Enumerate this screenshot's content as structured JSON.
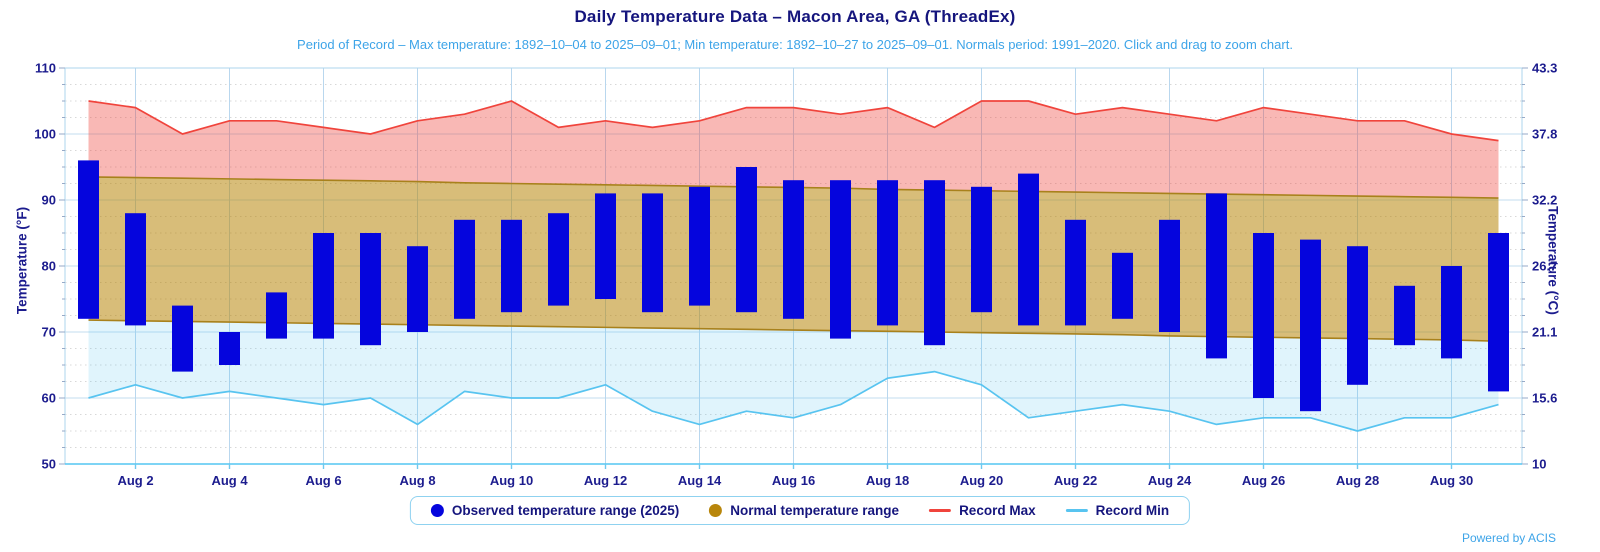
{
  "title": "Daily Temperature Data – Macon Area, GA (ThreadEx)",
  "subtitle": "Period of Record – Max temperature: 1892–10–04 to 2025–09–01; Min temperature: 1892–10–27 to 2025–09–01. Normals period: 1991–2020. Click and drag to zoom chart.",
  "footer": {
    "powered_by": "Powered by ACIS"
  },
  "legend": {
    "items": [
      {
        "label": "Observed temperature range (2025)",
        "marker": "circle",
        "color": "#0505dd"
      },
      {
        "label": "Normal temperature range",
        "marker": "circle",
        "color": "#b8860b"
      },
      {
        "label": "Record Max",
        "marker": "line",
        "color": "#f0443c"
      },
      {
        "label": "Record Min",
        "marker": "line",
        "color": "#58c4f0"
      }
    ]
  },
  "colors": {
    "observed_bar": "#0505dd",
    "normal_line": "#a8811c",
    "normal_fill": "rgba(184,134,11,0.55)",
    "record_max_line": "#f0443c",
    "record_max_fill": "rgba(240,68,60,0.38)",
    "record_min_line": "#58c4f0",
    "record_min_fill": "rgba(85,195,239,0.18)",
    "grid_major": "#c3ddef",
    "grid_vertical": "#b9d7ee",
    "grid_minor": "#d8d8d8",
    "axis_line": "#54c6f2",
    "plot_border": "#aed6ee",
    "tick_mark": "#96aac8",
    "x_tick_mark": "#6fc9ef",
    "text": "#1c1c8e"
  },
  "chart_data": {
    "type": "bar",
    "title": "Daily Temperature Data – Macon Area, GA (ThreadEx)",
    "xlabel": "",
    "ylabel_left": "Temperature (°F)",
    "ylabel_right": "Temperature (°C)",
    "ylim_f": [
      50,
      110
    ],
    "y_ticks_f": [
      50,
      60,
      70,
      80,
      90,
      100,
      110
    ],
    "y_ticks_c": [
      "10",
      "15.6",
      "21.1",
      "26.7",
      "32.2",
      "37.8",
      "43.3"
    ],
    "y_minor_step_f": 2.5,
    "x_label_every": 2,
    "grid": true,
    "legend_position": "bottom",
    "x": [
      "Aug 1",
      "Aug 2",
      "Aug 3",
      "Aug 4",
      "Aug 5",
      "Aug 6",
      "Aug 7",
      "Aug 8",
      "Aug 9",
      "Aug 10",
      "Aug 11",
      "Aug 12",
      "Aug 13",
      "Aug 14",
      "Aug 15",
      "Aug 16",
      "Aug 17",
      "Aug 18",
      "Aug 19",
      "Aug 20",
      "Aug 21",
      "Aug 22",
      "Aug 23",
      "Aug 24",
      "Aug 25",
      "Aug 26",
      "Aug 27",
      "Aug 28",
      "Aug 29",
      "Aug 30",
      "Aug 31"
    ],
    "series": [
      {
        "name": "Observed temperature range (2025)",
        "type": "range-bar",
        "low": [
          72,
          71,
          64,
          65,
          69,
          69,
          68,
          70,
          72,
          73,
          74,
          75,
          73,
          74,
          73,
          72,
          69,
          71,
          68,
          73,
          71,
          71,
          72,
          70,
          66,
          60,
          58,
          62,
          68,
          66,
          61
        ],
        "high": [
          96,
          88,
          74,
          70,
          76,
          85,
          85,
          83,
          87,
          87,
          88,
          91,
          91,
          92,
          95,
          93,
          93,
          93,
          93,
          92,
          94,
          87,
          82,
          87,
          91,
          85,
          84,
          83,
          77,
          80,
          85
        ]
      },
      {
        "name": "Normal temperature range",
        "type": "band",
        "low": [
          71.8,
          71.7,
          71.6,
          71.5,
          71.4,
          71.3,
          71.2,
          71.1,
          71.0,
          70.9,
          70.8,
          70.7,
          70.6,
          70.5,
          70.4,
          70.3,
          70.2,
          70.1,
          70.0,
          69.9,
          69.8,
          69.7,
          69.6,
          69.4,
          69.3,
          69.2,
          69.1,
          69.0,
          68.9,
          68.8,
          68.6
        ],
        "high": [
          93.5,
          93.4,
          93.3,
          93.2,
          93.1,
          93.0,
          92.9,
          92.8,
          92.6,
          92.5,
          92.4,
          92.3,
          92.2,
          92.1,
          92.0,
          91.9,
          91.8,
          91.6,
          91.5,
          91.4,
          91.3,
          91.2,
          91.1,
          91.0,
          90.9,
          90.8,
          90.7,
          90.6,
          90.5,
          90.4,
          90.3
        ]
      },
      {
        "name": "Record Max",
        "type": "line",
        "values": [
          105,
          104,
          100,
          102,
          102,
          101,
          100,
          102,
          103,
          105,
          101,
          102,
          101,
          102,
          104,
          104,
          103,
          104,
          101,
          105,
          105,
          103,
          104,
          103,
          102,
          104,
          103,
          102,
          102,
          100,
          99
        ]
      },
      {
        "name": "Record Min",
        "type": "line",
        "values": [
          60,
          62,
          60,
          61,
          60,
          59,
          60,
          56,
          61,
          60,
          60,
          62,
          58,
          56,
          58,
          57,
          59,
          63,
          64,
          62,
          57,
          58,
          59,
          58,
          56,
          57,
          57,
          55,
          57,
          57,
          59
        ]
      }
    ]
  }
}
